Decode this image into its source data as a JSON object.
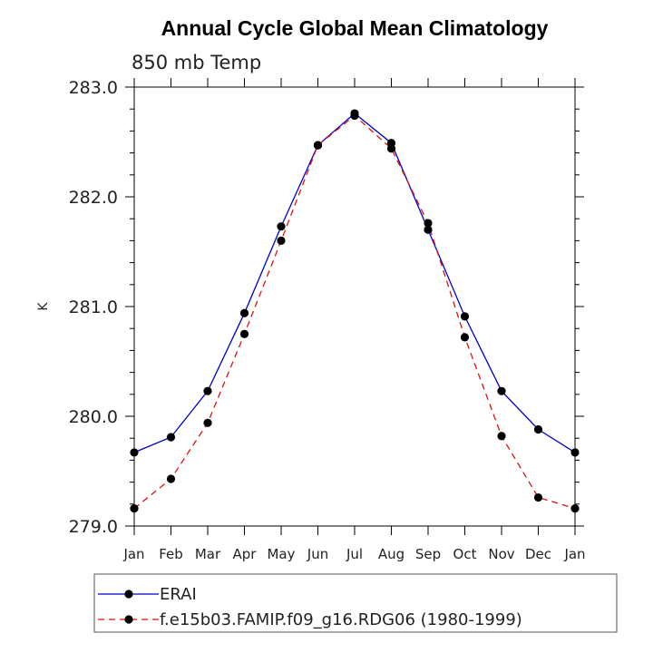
{
  "chart_data": {
    "type": "line",
    "title": "Annual Cycle Global Mean Climatology",
    "subtitle": "850 mb Temp",
    "ylabel": "K",
    "xlabel": "",
    "categories": [
      "Jan",
      "Feb",
      "Mar",
      "Apr",
      "May",
      "Jun",
      "Jul",
      "Aug",
      "Sep",
      "Oct",
      "Nov",
      "Dec",
      "Jan"
    ],
    "ylim": [
      279.0,
      283.0
    ],
    "yticks": [
      "279.0",
      "280.0",
      "281.0",
      "282.0",
      "283.0"
    ],
    "series": [
      {
        "name": "ERAI",
        "color": "#0000cc",
        "linestyle": "solid",
        "values": [
          279.67,
          279.81,
          280.23,
          280.94,
          281.73,
          282.47,
          282.76,
          282.49,
          281.7,
          280.91,
          280.23,
          279.88,
          279.67
        ]
      },
      {
        "name": "f.e15b03.FAMIP.f09_g16.RDG06 (1980-1999)",
        "color": "#dd1111",
        "linestyle": "dashed",
        "values": [
          279.16,
          279.43,
          279.94,
          280.75,
          281.6,
          282.47,
          282.74,
          282.44,
          281.76,
          280.72,
          279.82,
          279.26,
          279.16
        ]
      }
    ],
    "grid": false,
    "legend_position": "bottom"
  }
}
